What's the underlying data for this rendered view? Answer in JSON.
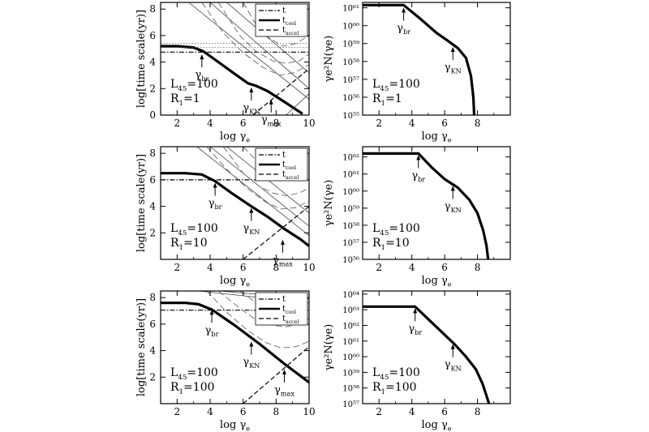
{
  "chart_data": [
    {
      "panel": "time-scale",
      "type": "line",
      "row": 0,
      "xlabel": "log γe",
      "ylabel": "log[time scale(yr)]",
      "xlim": [
        1,
        10
      ],
      "ylim": [
        0,
        8.5
      ],
      "xticks": [
        2,
        4,
        6,
        8,
        10
      ],
      "yticks": [
        0,
        2,
        4,
        6,
        8
      ],
      "legend": [
        "t",
        "tcool",
        "taccel"
      ],
      "legend_placement": "top-right",
      "params": [
        "L45=100",
        "R1=1"
      ],
      "annotations": [
        {
          "label": "γbr",
          "x": 3.5,
          "y": 4.7
        },
        {
          "label": "γKN",
          "x": 6.5,
          "y": 2.2
        },
        {
          "label": "γmax",
          "x": 7.7,
          "y": 1.3
        }
      ],
      "series": [
        {
          "style": "bold",
          "x": [
            1,
            2,
            3,
            3.6,
            4.5,
            5.5,
            6.3,
            6.8,
            7.5,
            8.5,
            9.6
          ],
          "y": [
            5.2,
            5.2,
            5.1,
            4.8,
            4.0,
            3.1,
            2.4,
            2.2,
            1.8,
            1.0,
            0.1
          ]
        },
        {
          "style": "dashdot",
          "x": [
            1,
            10
          ],
          "y": [
            4.75,
            4.75
          ]
        },
        {
          "style": "dotted",
          "x": [
            1,
            10
          ],
          "y": [
            5.1,
            5.1
          ]
        },
        {
          "style": "dotted",
          "x": [
            1,
            10
          ],
          "y": [
            5.4,
            5.4
          ]
        },
        {
          "style": "dashed",
          "x": [
            6.6,
            10
          ],
          "y": [
            0,
            3.5
          ]
        },
        {
          "style": "thin",
          "x": [
            2.7,
            10
          ],
          "y": [
            8.5,
            1.2
          ]
        },
        {
          "style": "thin",
          "x": [
            4.0,
            10
          ],
          "y": [
            8.5,
            2.0
          ]
        },
        {
          "style": "thin",
          "x": [
            5.0,
            10
          ],
          "y": [
            8.5,
            3.2
          ]
        },
        {
          "style": "thin",
          "x": [
            8.6,
            10
          ],
          "y": [
            0,
            1.6
          ]
        },
        {
          "style": "thin-dashed",
          "x": [
            4.5,
            5.8,
            6.8,
            7.8,
            8.6,
            9.4,
            10
          ],
          "y": [
            8.5,
            6.0,
            4.8,
            4.1,
            3.9,
            4.1,
            4.6
          ]
        },
        {
          "style": "thin-dashed",
          "x": [
            6.0,
            6.8,
            7.6,
            8.4,
            9.2,
            10
          ],
          "y": [
            8.5,
            6.8,
            5.8,
            5.2,
            5.4,
            6.0
          ]
        },
        {
          "style": "thin-dashed",
          "x": [
            3.5,
            4.8,
            6.0,
            7.2,
            8.2,
            9.1,
            10
          ],
          "y": [
            8.5,
            6.2,
            4.7,
            3.6,
            3.0,
            3.2,
            3.8
          ]
        }
      ]
    },
    {
      "panel": "spectrum",
      "type": "line",
      "row": 0,
      "xlabel": "log γe",
      "ylabel": "γe²N(γe)",
      "xlim": [
        1,
        10
      ],
      "ylog": true,
      "ylim": [
        55,
        61.3
      ],
      "xticks": [
        2,
        4,
        6,
        8
      ],
      "yticks": [
        55,
        56,
        57,
        58,
        59,
        60,
        61
      ],
      "ytick_labels": [
        "10⁵⁵",
        "10⁵⁶",
        "10⁵⁷",
        "10⁵⁸",
        "10⁵⁹",
        "10⁶⁰",
        "10⁶¹"
      ],
      "params": [
        "L45=100",
        "R1=1"
      ],
      "annotations": [
        {
          "label": "γbr",
          "x": 3.5,
          "y": 61.1
        },
        {
          "label": "γKN",
          "x": 6.5,
          "y": 58.9
        }
      ],
      "series": [
        {
          "style": "bold",
          "x": [
            1,
            3.5,
            4.5,
            5.5,
            6.2,
            6.8,
            7.3,
            7.6,
            7.75,
            7.8
          ],
          "y": [
            61.15,
            61.15,
            60.4,
            59.6,
            59.15,
            58.75,
            58.2,
            57.2,
            56.0,
            55.0
          ]
        }
      ]
    },
    {
      "panel": "time-scale",
      "type": "line",
      "row": 1,
      "xlabel": "log γe",
      "ylabel": "log[time scale(yr)]",
      "xlim": [
        1,
        10
      ],
      "ylim": [
        0,
        8.5
      ],
      "xticks": [
        2,
        4,
        6,
        8,
        10
      ],
      "yticks": [
        2,
        4,
        6,
        8
      ],
      "legend": [
        "t",
        "tcool",
        "taccel"
      ],
      "legend_placement": "top-right",
      "params": [
        "L45=100",
        "R1=10"
      ],
      "annotations": [
        {
          "label": "γbr",
          "x": 4.3,
          "y": 5.9
        },
        {
          "label": "γKN",
          "x": 6.5,
          "y": 4.0
        },
        {
          "label": "γmax",
          "x": 8.4,
          "y": 1.6
        }
      ],
      "series": [
        {
          "style": "bold",
          "x": [
            1,
            2.5,
            3.5,
            4.3,
            5.3,
            6.5,
            7.5,
            8.5,
            9.5,
            10
          ],
          "y": [
            6.5,
            6.5,
            6.4,
            5.9,
            5.0,
            4.0,
            3.2,
            2.3,
            1.5,
            1.0
          ]
        },
        {
          "style": "dashdot",
          "x": [
            1,
            10
          ],
          "y": [
            6.0,
            6.0
          ]
        },
        {
          "style": "dashed",
          "x": [
            6.0,
            10
          ],
          "y": [
            0,
            4.0
          ]
        },
        {
          "style": "thin",
          "x": [
            4.0,
            10
          ],
          "y": [
            8.5,
            2.5
          ]
        },
        {
          "style": "thin",
          "x": [
            5.0,
            10
          ],
          "y": [
            8.5,
            3.5
          ]
        },
        {
          "style": "thin",
          "x": [
            3.2,
            10
          ],
          "y": [
            8.5,
            1.8
          ]
        },
        {
          "style": "thin-dashed",
          "x": [
            4.8,
            6.0,
            7.0,
            7.8,
            8.6,
            9.4,
            10
          ],
          "y": [
            8.5,
            6.5,
            5.5,
            5.0,
            4.8,
            5.0,
            5.4
          ]
        },
        {
          "style": "thin-dashed",
          "x": [
            6.0,
            7.0,
            7.9,
            8.8,
            9.5,
            10
          ],
          "y": [
            8.5,
            7.2,
            6.6,
            6.3,
            6.5,
            6.8
          ]
        },
        {
          "style": "thin-dashed",
          "x": [
            3.8,
            5.0,
            6.3,
            7.4,
            8.3,
            9.2,
            10
          ],
          "y": [
            8.5,
            6.8,
            5.3,
            4.3,
            3.8,
            3.9,
            4.4
          ]
        }
      ]
    },
    {
      "panel": "spectrum",
      "type": "line",
      "row": 1,
      "xlabel": "log γe",
      "ylabel": "γe²N(γe)",
      "xlim": [
        1,
        10
      ],
      "ylog": true,
      "ylim": [
        56,
        62.6
      ],
      "xticks": [
        2,
        4,
        6,
        8
      ],
      "yticks": [
        56,
        57,
        58,
        59,
        60,
        61,
        62
      ],
      "ytick_labels": [
        "10⁵⁶",
        "10⁵⁷",
        "10⁵⁸",
        "10⁵⁹",
        "10⁶⁰",
        "10⁶¹",
        "10⁶²"
      ],
      "params": [
        "L45=100",
        "R1=10"
      ],
      "annotations": [
        {
          "label": "γbr",
          "x": 4.4,
          "y": 62.2
        },
        {
          "label": "γKN",
          "x": 6.5,
          "y": 60.4
        }
      ],
      "series": [
        {
          "style": "bold",
          "x": [
            1,
            4.4,
            5.2,
            6.0,
            6.8,
            7.5,
            8.0,
            8.35,
            8.55,
            8.65
          ],
          "y": [
            62.2,
            62.2,
            61.4,
            60.7,
            60.2,
            59.5,
            58.7,
            57.7,
            56.8,
            56.0
          ]
        }
      ]
    },
    {
      "panel": "time-scale",
      "type": "line",
      "row": 2,
      "xlabel": "log γe",
      "ylabel": "log[time scale(yr)]",
      "xlim": [
        1,
        10
      ],
      "ylim": [
        0,
        8.5
      ],
      "xticks": [
        2,
        4,
        6,
        8,
        10
      ],
      "yticks": [
        2,
        4,
        6,
        8
      ],
      "legend": [
        "t",
        "tcool",
        "taccel"
      ],
      "legend_placement": "top-right",
      "params": [
        "L45=100",
        "R1=100"
      ],
      "annotations": [
        {
          "label": "γbr",
          "x": 4.1,
          "y": 7.2
        },
        {
          "label": "γKN",
          "x": 6.5,
          "y": 4.8
        },
        {
          "label": "γmax",
          "x": 8.5,
          "y": 2.7
        }
      ],
      "series": [
        {
          "style": "bold",
          "x": [
            1,
            2.5,
            3.3,
            4.1,
            5.5,
            7.0,
            8.5,
            10
          ],
          "y": [
            7.6,
            7.6,
            7.5,
            7.1,
            5.9,
            4.5,
            3.0,
            1.6
          ]
        },
        {
          "style": "dashdot",
          "x": [
            1,
            10
          ],
          "y": [
            7.05,
            7.05
          ]
        },
        {
          "style": "dashed",
          "x": [
            6.0,
            10
          ],
          "y": [
            0,
            4.3
          ]
        },
        {
          "style": "thin",
          "x": [
            3.3,
            10
          ],
          "y": [
            8.5,
            7.6
          ]
        },
        {
          "style": "thin",
          "x": [
            4.6,
            10
          ],
          "y": [
            8.5,
            7.9
          ]
        },
        {
          "style": "thin-dashed",
          "x": [
            4.5,
            5.8,
            6.8,
            7.8,
            8.6,
            9.4,
            10
          ],
          "y": [
            8.5,
            7.2,
            6.3,
            5.9,
            5.8,
            6.0,
            6.4
          ]
        },
        {
          "style": "thin-dashed",
          "x": [
            5.8,
            6.8,
            7.7,
            8.6,
            9.4,
            10
          ],
          "y": [
            8.5,
            7.6,
            7.1,
            6.9,
            7.0,
            7.3
          ]
        },
        {
          "style": "thin-dashed",
          "x": [
            3.8,
            5.0,
            6.3,
            7.4,
            8.3,
            9.2,
            10
          ],
          "y": [
            8.5,
            6.9,
            5.5,
            4.6,
            4.2,
            4.3,
            4.7
          ]
        }
      ]
    },
    {
      "panel": "spectrum",
      "type": "line",
      "row": 2,
      "xlabel": "log γe",
      "ylabel": "γe²N(γe)",
      "xlim": [
        1,
        10
      ],
      "ylog": true,
      "ylim": [
        57,
        64.2
      ],
      "xticks": [
        2,
        4,
        6,
        8
      ],
      "yticks": [
        57,
        58,
        59,
        60,
        61,
        62,
        63,
        64
      ],
      "ytick_labels": [
        "10⁵⁷",
        "10⁵⁸",
        "10⁵⁹",
        "10⁶⁰",
        "10⁶¹",
        "10⁶²",
        "10⁶³",
        "10⁶⁴"
      ],
      "params": [
        "L45=100",
        "R1=100"
      ],
      "annotations": [
        {
          "label": "γbr",
          "x": 4.2,
          "y": 63.2
        },
        {
          "label": "γKN",
          "x": 6.5,
          "y": 60.9
        }
      ],
      "series": [
        {
          "style": "bold",
          "x": [
            1,
            4.2,
            5.0,
            5.8,
            6.6,
            7.3,
            7.9,
            8.3,
            8.55,
            8.7
          ],
          "y": [
            63.2,
            63.2,
            62.4,
            61.6,
            60.8,
            60.0,
            59.2,
            58.3,
            57.5,
            57.0
          ]
        }
      ]
    }
  ]
}
